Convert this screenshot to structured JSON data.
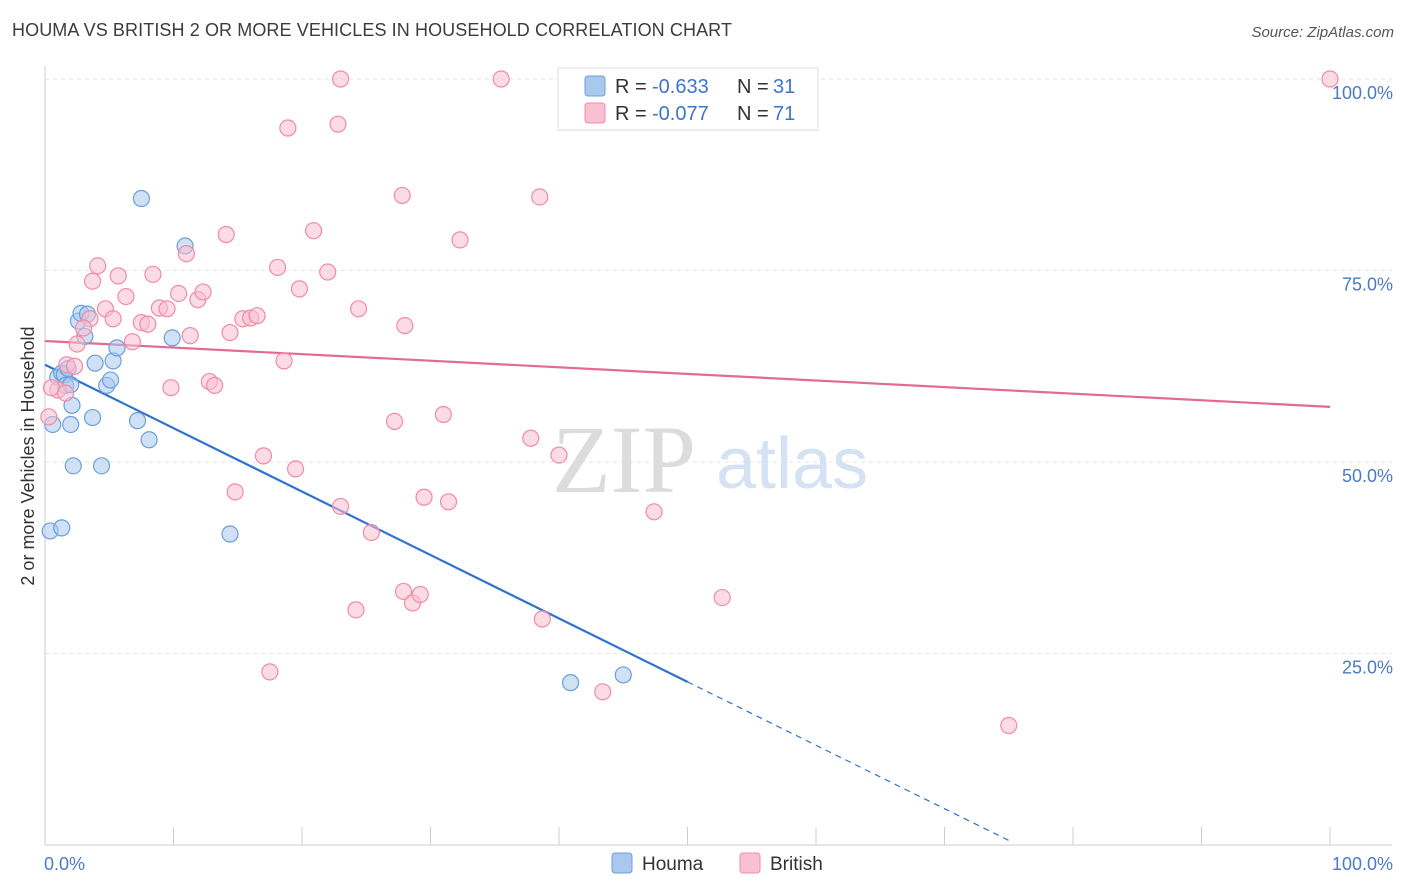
{
  "title": "HOUMA VS BRITISH 2 OR MORE VEHICLES IN HOUSEHOLD CORRELATION CHART",
  "source": "Source: ZipAtlas.com",
  "watermark": {
    "zip": "ZIP",
    "atlas": "atlas"
  },
  "chart_data": {
    "type": "scatter",
    "title": "HOUMA VS BRITISH 2 OR MORE VEHICLES IN HOUSEHOLD CORRELATION CHART",
    "xlabel": "",
    "ylabel": "2 or more Vehicles in Household",
    "xlim": [
      0,
      100
    ],
    "ylim": [
      0,
      100
    ],
    "x_tick_labels": [
      "0.0%",
      "100.0%"
    ],
    "y_ticks": [
      25,
      50,
      75,
      100
    ],
    "y_tick_labels": [
      "25.0%",
      "50.0%",
      "75.0%",
      "100.0%"
    ],
    "grid": true,
    "legend_placement": "top-center",
    "legend": [
      {
        "series": "Houma",
        "r_label": "R =",
        "r_value": "-0.633",
        "n_label": "N =",
        "n_value": "31"
      },
      {
        "series": "British",
        "r_label": "R =",
        "r_value": "-0.077",
        "n_label": "N =",
        "n_value": "71"
      }
    ],
    "series": [
      {
        "name": "Houma",
        "color": "#6a9fdc",
        "fill": "#a9c8ee",
        "trend_color": "#2f72d0",
        "trend": {
          "x0": 0,
          "y0": 62.7,
          "x1": 50,
          "y1": 21.3,
          "dashed_to_x": 75,
          "dashed_to_y": 0.6
        },
        "points": [
          [
            0.4,
            41.0
          ],
          [
            1.3,
            41.4
          ],
          [
            0.6,
            54.9
          ],
          [
            1.0,
            61.1
          ],
          [
            1.3,
            61.6
          ],
          [
            1.5,
            61.4
          ],
          [
            1.6,
            60.0
          ],
          [
            1.8,
            62.2
          ],
          [
            2.0,
            60.1
          ],
          [
            2.0,
            54.9
          ],
          [
            2.1,
            57.4
          ],
          [
            2.2,
            49.5
          ],
          [
            2.6,
            68.4
          ],
          [
            2.8,
            69.4
          ],
          [
            3.1,
            66.4
          ],
          [
            3.3,
            69.3
          ],
          [
            3.7,
            55.8
          ],
          [
            3.9,
            62.9
          ],
          [
            4.4,
            49.5
          ],
          [
            4.8,
            60.0
          ],
          [
            5.1,
            60.7
          ],
          [
            5.3,
            63.2
          ],
          [
            5.6,
            64.9
          ],
          [
            7.2,
            55.4
          ],
          [
            7.5,
            84.4
          ],
          [
            8.1,
            52.9
          ],
          [
            9.9,
            66.2
          ],
          [
            10.9,
            78.2
          ],
          [
            14.4,
            40.6
          ],
          [
            40.9,
            21.2
          ],
          [
            45.0,
            22.2
          ]
        ]
      },
      {
        "name": "British",
        "color": "#f28aa8",
        "fill": "#f8c0d0",
        "trend_color": "#e36b91",
        "trend": {
          "x0": 0,
          "y0": 65.8,
          "x1": 100,
          "y1": 57.2
        },
        "points": [
          [
            0.3,
            55.9
          ],
          [
            1.0,
            59.4
          ],
          [
            1.7,
            62.7
          ],
          [
            2.3,
            62.5
          ],
          [
            2.5,
            65.4
          ],
          [
            3.5,
            68.7
          ],
          [
            3.7,
            73.6
          ],
          [
            4.1,
            75.6
          ],
          [
            4.7,
            70.0
          ],
          [
            5.3,
            68.7
          ],
          [
            5.7,
            74.3
          ],
          [
            6.3,
            71.6
          ],
          [
            6.8,
            65.7
          ],
          [
            7.5,
            68.2
          ],
          [
            8.0,
            68.0
          ],
          [
            8.4,
            74.5
          ],
          [
            8.9,
            70.1
          ],
          [
            9.5,
            70.0
          ],
          [
            9.8,
            59.7
          ],
          [
            10.4,
            72.0
          ],
          [
            11.0,
            77.2
          ],
          [
            11.3,
            66.5
          ],
          [
            11.9,
            71.2
          ],
          [
            12.3,
            72.2
          ],
          [
            12.8,
            60.5
          ],
          [
            13.2,
            60.0
          ],
          [
            14.1,
            79.7
          ],
          [
            14.4,
            66.9
          ],
          [
            14.8,
            46.1
          ],
          [
            15.4,
            68.7
          ],
          [
            16.0,
            68.8
          ],
          [
            16.5,
            69.1
          ],
          [
            17.0,
            50.8
          ],
          [
            17.5,
            22.6
          ],
          [
            18.1,
            75.4
          ],
          [
            18.6,
            63.2
          ],
          [
            18.9,
            93.6
          ],
          [
            19.5,
            49.1
          ],
          [
            19.8,
            72.6
          ],
          [
            20.9,
            80.2
          ],
          [
            22.0,
            74.8
          ],
          [
            22.8,
            94.1
          ],
          [
            23.0,
            44.2
          ],
          [
            23.0,
            100.0
          ],
          [
            24.2,
            30.7
          ],
          [
            24.4,
            70.0
          ],
          [
            25.4,
            40.8
          ],
          [
            27.2,
            55.3
          ],
          [
            27.8,
            84.8
          ],
          [
            27.9,
            33.1
          ],
          [
            28.0,
            67.8
          ],
          [
            28.6,
            31.6
          ],
          [
            29.2,
            32.7
          ],
          [
            29.5,
            45.4
          ],
          [
            31.0,
            56.2
          ],
          [
            31.4,
            44.8
          ],
          [
            32.3,
            79.0
          ],
          [
            35.5,
            100.0
          ],
          [
            37.8,
            53.1
          ],
          [
            38.5,
            84.6
          ],
          [
            38.7,
            29.5
          ],
          [
            40.0,
            50.9
          ],
          [
            43.4,
            20.0
          ],
          [
            47.4,
            43.5
          ],
          [
            49.8,
            100.0
          ],
          [
            52.7,
            32.3
          ],
          [
            75.0,
            15.6
          ],
          [
            100.0,
            100.0
          ],
          [
            0.5,
            59.7
          ],
          [
            1.6,
            59.0
          ],
          [
            3.0,
            67.5
          ]
        ]
      }
    ]
  }
}
